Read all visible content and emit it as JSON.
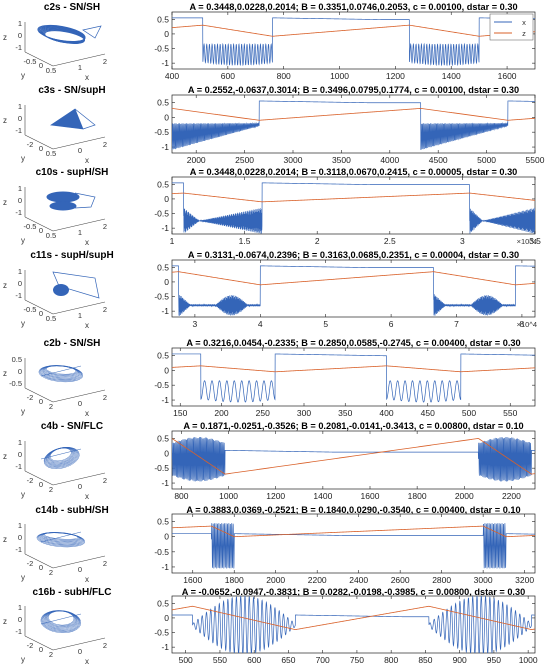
{
  "chart_data": [
    {
      "type": "line",
      "label": "c2s - SN/SH",
      "title": "A = 0.3448,0.0228,0.2014;  B = 0.3351,0.0746,0.2053,  c = 0.00100,  dstar = 0.30",
      "xlim": [
        400,
        1700
      ],
      "xticks": [
        400,
        600,
        800,
        1000,
        1200,
        1400,
        1600
      ],
      "ylim": [
        -1.2,
        0.75
      ],
      "yticks": [
        0.5,
        0,
        -0.5,
        -1
      ],
      "exponent": "",
      "legend": [
        "x",
        "z"
      ],
      "legend_position": "top-right",
      "series": [
        {
          "name": "x",
          "color": "#3465b8",
          "bursts": [
            {
              "start": 510,
              "end": 760,
              "kind": "SN/SH",
              "n": 26
            },
            {
              "start": 1250,
              "end": 1500,
              "kind": "SN/SH",
              "n": 26
            }
          ]
        },
        {
          "name": "z",
          "color": "#d9612a",
          "pattern": "sawtooth",
          "low": -0.08,
          "high": 0.3
        }
      ]
    },
    {
      "type": "line",
      "label": "c3s - SN/supH",
      "title": "A = 0.2552,-0.0637,0.3014;  B = 0.3496,0.0795,0.1774,  c = 0.00100,  dstar = 0.30",
      "xlim": [
        1750,
        5500
      ],
      "xticks": [
        2000,
        2500,
        3000,
        3500,
        4000,
        4500,
        5000,
        5500
      ],
      "ylim": [
        -1.2,
        0.75
      ],
      "yticks": [
        0.5,
        0,
        -0.5,
        -1
      ],
      "exponent": "",
      "series": [
        {
          "name": "x",
          "color": "#3465b8",
          "bursts": [
            {
              "start": 1750,
              "end": 2650,
              "kind": "SN/supH",
              "n": 75
            },
            {
              "start": 4320,
              "end": 5220,
              "kind": "SN/supH",
              "n": 75
            }
          ]
        },
        {
          "name": "z",
          "color": "#d9612a",
          "pattern": "sawtooth",
          "low": -0.1,
          "high": 0.3
        }
      ]
    },
    {
      "type": "line",
      "label": "c10s - supH/SH",
      "title": "A = 0.3448,0.0228,0.2014;  B = 0.3118,0.0670,0.2415,  c = 0.00005,  dstar = 0.30",
      "xlim": [
        1,
        3.5
      ],
      "xticks": [
        1,
        1.5,
        2,
        2.5,
        3,
        3.5
      ],
      "ylim": [
        -1.2,
        0.75
      ],
      "yticks": [
        0.5,
        0,
        -0.5,
        -1
      ],
      "exponent": "×10^4",
      "series": [
        {
          "name": "x",
          "color": "#3465b8",
          "bursts": [
            {
              "start": 1.08,
              "end": 1.62,
              "kind": "supH/SH",
              "n": 160
            },
            {
              "start": 3.05,
              "end": 3.5,
              "kind": "supH/SH",
              "n": 160
            }
          ]
        },
        {
          "name": "z",
          "color": "#d9612a",
          "pattern": "sawtooth",
          "low": -0.1,
          "high": 0.2
        }
      ]
    },
    {
      "type": "line",
      "label": "c11s - supH/supH",
      "title": "A = 0.3131,-0.0674,0.2396;  B = 0.3163,0.0685,0.2351,  c = 0.00004,  dstar = 0.30",
      "xlim": [
        2.65,
        8.2
      ],
      "xticks": [
        3,
        4,
        5,
        6,
        7,
        8
      ],
      "ylim": [
        -1.2,
        0.75
      ],
      "yticks": [
        0.5,
        0,
        -0.5,
        -1
      ],
      "exponent": "×10^4",
      "series": [
        {
          "name": "x",
          "color": "#3465b8",
          "bursts": [
            {
              "start": 2.75,
              "end": 4.0,
              "kind": "supH/supH",
              "n": 160
            },
            {
              "start": 6.65,
              "end": 7.9,
              "kind": "supH/supH",
              "n": 160
            }
          ]
        },
        {
          "name": "z",
          "color": "#d9612a",
          "pattern": "sawtooth",
          "low": -0.1,
          "high": 0.35
        }
      ]
    },
    {
      "type": "line",
      "label": "c2b - SN/SH",
      "title": "A = 0.3216,0.0454,-0.2335;  B = 0.2850,0.0585,-0.2745,  c = 0.00400,  dstar = 0.30",
      "xlim": [
        140,
        580
      ],
      "xticks": [
        150,
        200,
        250,
        300,
        350,
        400,
        450,
        500,
        550
      ],
      "ylim": [
        -1.2,
        0.75
      ],
      "yticks": [
        0.5,
        0,
        -0.5,
        -1
      ],
      "exponent": "",
      "series": [
        {
          "name": "x",
          "color": "#3465b8",
          "bursts": [
            {
              "start": 175,
              "end": 265,
              "kind": "SN/SH",
              "n": 10
            },
            {
              "start": 400,
              "end": 490,
              "kind": "SN/SH",
              "n": 10
            }
          ]
        },
        {
          "name": "z",
          "color": "#d9612a",
          "pattern": "sawtooth",
          "low": -0.05,
          "high": 0.15
        }
      ]
    },
    {
      "type": "line",
      "label": "c4b - SN/FLC",
      "title": "A = 0.1871,-0.0251,-0.3526;  B = 0.2081,-0.0141,-0.3413,  c = 0.00800,  dstar = 0.10",
      "xlim": [
        760,
        2300
      ],
      "xticks": [
        800,
        1000,
        1200,
        1400,
        1600,
        1800,
        2000,
        2200
      ],
      "ylim": [
        -1.2,
        0.75
      ],
      "yticks": [
        0.5,
        0,
        -0.5,
        -1
      ],
      "exponent": "",
      "series": [
        {
          "name": "x",
          "color": "#3465b8",
          "bursts": [
            {
              "start": 760,
              "end": 985,
              "kind": "SN/FLC",
              "n": 45
            },
            {
              "start": 2060,
              "end": 2285,
              "kind": "SN/FLC",
              "n": 45
            }
          ]
        },
        {
          "name": "z",
          "color": "#d9612a",
          "pattern": "sawtooth",
          "low": -0.7,
          "high": 0.5
        }
      ]
    },
    {
      "type": "line",
      "label": "c14b - subH/SH",
      "title": "A = 0.3883,0.0369,-0.2521;  B = 0.1840,0.0290,-0.3540,  c = 0.00400,  dstar = 0.10",
      "xlim": [
        1500,
        3250
      ],
      "xticks": [
        1600,
        1800,
        2000,
        2200,
        2400,
        2600,
        2800,
        3000,
        3200
      ],
      "ylim": [
        -1.2,
        0.75
      ],
      "yticks": [
        0.5,
        0,
        -0.5,
        -1
      ],
      "exponent": "",
      "series": [
        {
          "name": "x",
          "color": "#3465b8",
          "bursts": [
            {
              "start": 1690,
              "end": 1800,
              "kind": "subH/SH",
              "n": 16
            },
            {
              "start": 3000,
              "end": 3110,
              "kind": "subH/SH",
              "n": 16
            }
          ]
        },
        {
          "name": "z",
          "color": "#d9612a",
          "pattern": "sawtooth",
          "low": 0.0,
          "high": 0.35
        }
      ]
    },
    {
      "type": "line",
      "label": "c16b - subH/FLC",
      "title": "A = -0.0652,-0.0947,-0.3831;  B = 0.0282,-0.0198,-0.3985,  c = 0.00800,  dstar = 0.30",
      "xlim": [
        480,
        1010
      ],
      "xticks": [
        500,
        550,
        600,
        650,
        700,
        750,
        800,
        850,
        900,
        950,
        1000
      ],
      "ylim": [
        -1.2,
        0.75
      ],
      "yticks": [
        0.5,
        0,
        -0.5,
        -1
      ],
      "exponent": "",
      "series": [
        {
          "name": "x",
          "color": "#3465b8",
          "bursts": [
            {
              "start": 510,
              "end": 660,
              "kind": "subH/FLC",
              "n": 24
            },
            {
              "start": 855,
              "end": 1005,
              "kind": "subH/FLC",
              "n": 24
            }
          ]
        },
        {
          "name": "z",
          "color": "#d9612a",
          "pattern": "sawtooth",
          "low": -0.4,
          "high": 0.4
        }
      ]
    }
  ],
  "phase_axes": {
    "labels": [
      "x",
      "y",
      "z"
    ],
    "panels": [
      {
        "z_ticks": [
          "1",
          "0",
          "-1"
        ],
        "x_ticks": [
          "1",
          "2"
        ],
        "y_ticks": [
          "-0.5",
          "0",
          "0.5"
        ]
      },
      {
        "z_ticks": [
          "1",
          "0",
          "-1"
        ],
        "x_ticks": [
          "0",
          "2"
        ],
        "y_ticks": [
          "-2",
          "0",
          "0.5"
        ]
      },
      {
        "z_ticks": [
          "1",
          "0",
          "-1"
        ],
        "x_ticks": [
          "1",
          "2"
        ],
        "y_ticks": [
          "-0.5",
          "0",
          "0.5"
        ]
      },
      {
        "z_ticks": [
          "1",
          "0",
          "-1"
        ],
        "x_ticks": [
          "1",
          "2"
        ],
        "y_ticks": [
          "-0.5",
          "0",
          "0.5"
        ]
      },
      {
        "z_ticks": [
          "0.5",
          "0",
          "-0.5"
        ],
        "x_ticks": [
          "0",
          "2"
        ],
        "y_ticks": [
          "-2",
          "0",
          "2"
        ]
      },
      {
        "z_ticks": [
          "1",
          "0",
          "-1"
        ],
        "x_ticks": [
          "0",
          "2"
        ],
        "y_ticks": [
          "-2",
          "0",
          "2"
        ]
      },
      {
        "z_ticks": [
          "1",
          "0",
          "-1"
        ],
        "x_ticks": [
          "0",
          "2"
        ],
        "y_ticks": [
          "-2",
          "0",
          "2"
        ]
      },
      {
        "z_ticks": [
          "1",
          "0",
          "-1"
        ],
        "x_ticks": [
          "0",
          "2"
        ],
        "y_ticks": [
          "-2",
          "0",
          "2"
        ]
      }
    ]
  },
  "colors": {
    "x": "#3465b8",
    "z": "#d9612a"
  }
}
